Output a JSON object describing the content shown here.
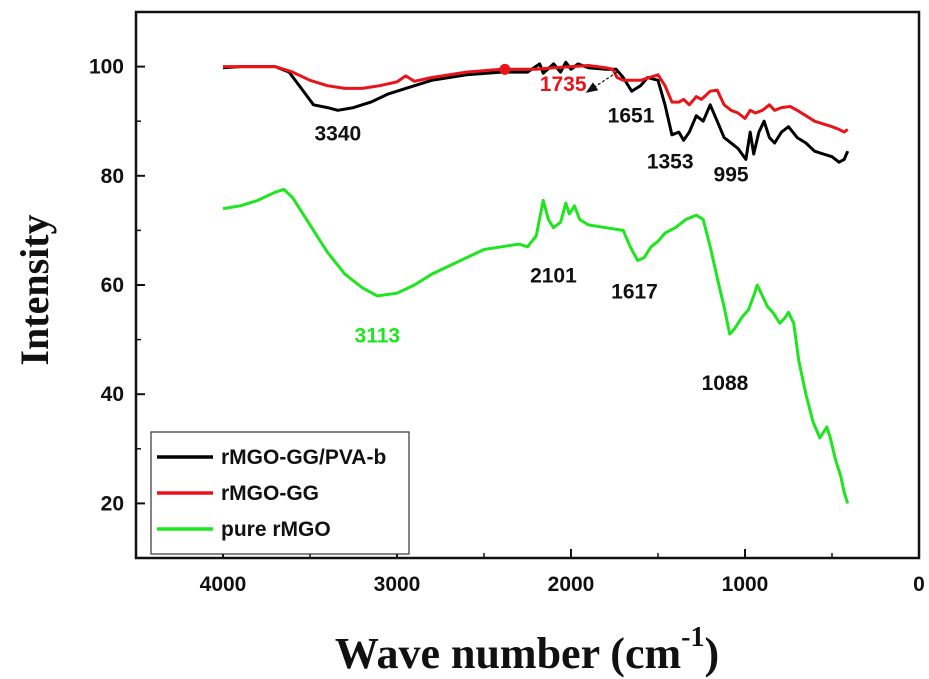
{
  "chart_data": {
    "type": "line",
    "xlabel": "Wave number (cm",
    "xlabel_sup": "-1",
    "xlabel_close": ")",
    "ylabel": "Intensity",
    "xlim": [
      4500,
      0
    ],
    "ylim": [
      10,
      110
    ],
    "x_ticks": [
      4000,
      3000,
      2000,
      1000,
      0
    ],
    "y_ticks": [
      20,
      40,
      60,
      80,
      100
    ],
    "grid": false,
    "legend_position": "bottom-left",
    "series": [
      {
        "name": "rMGO-GG/PVA-b",
        "color": "#000000",
        "points": [
          [
            4000,
            99.8
          ],
          [
            3900,
            100
          ],
          [
            3700,
            100
          ],
          [
            3620,
            99
          ],
          [
            3550,
            96
          ],
          [
            3480,
            93
          ],
          [
            3400,
            92.5
          ],
          [
            3340,
            92
          ],
          [
            3250,
            92.5
          ],
          [
            3150,
            93.5
          ],
          [
            3050,
            95
          ],
          [
            2950,
            96
          ],
          [
            2800,
            97.5
          ],
          [
            2600,
            98.5
          ],
          [
            2400,
            99
          ],
          [
            2250,
            99
          ],
          [
            2180,
            100.5
          ],
          [
            2160,
            98.8
          ],
          [
            2100,
            100.5
          ],
          [
            2060,
            99
          ],
          [
            2030,
            100.8
          ],
          [
            2000,
            99.5
          ],
          [
            1960,
            100.5
          ],
          [
            1900,
            99.8
          ],
          [
            1800,
            99.5
          ],
          [
            1740,
            99.5
          ],
          [
            1700,
            98
          ],
          [
            1651,
            95.5
          ],
          [
            1600,
            96.5
          ],
          [
            1560,
            98
          ],
          [
            1500,
            97.5
          ],
          [
            1460,
            93
          ],
          [
            1420,
            87.5
          ],
          [
            1380,
            88
          ],
          [
            1353,
            86.5
          ],
          [
            1320,
            88
          ],
          [
            1280,
            91
          ],
          [
            1240,
            90
          ],
          [
            1200,
            93
          ],
          [
            1160,
            90
          ],
          [
            1120,
            87
          ],
          [
            1080,
            86
          ],
          [
            1040,
            85
          ],
          [
            995,
            83
          ],
          [
            970,
            88
          ],
          [
            950,
            84
          ],
          [
            920,
            88
          ],
          [
            890,
            90
          ],
          [
            860,
            87
          ],
          [
            830,
            86
          ],
          [
            790,
            88
          ],
          [
            750,
            89
          ],
          [
            700,
            87
          ],
          [
            650,
            86
          ],
          [
            600,
            84.5
          ],
          [
            550,
            84
          ],
          [
            500,
            83.5
          ],
          [
            460,
            82.5
          ],
          [
            430,
            83
          ],
          [
            410,
            84.5
          ]
        ]
      },
      {
        "name": "rMGO-GG",
        "color": "#e8141a",
        "points": [
          [
            4000,
            100
          ],
          [
            3900,
            100
          ],
          [
            3700,
            100
          ],
          [
            3600,
            99
          ],
          [
            3500,
            97.5
          ],
          [
            3400,
            96.5
          ],
          [
            3300,
            96
          ],
          [
            3200,
            96
          ],
          [
            3100,
            96.5
          ],
          [
            3000,
            97.2
          ],
          [
            2950,
            98.3
          ],
          [
            2900,
            97.3
          ],
          [
            2800,
            98
          ],
          [
            2600,
            99
          ],
          [
            2400,
            99.5
          ],
          [
            2200,
            99.5
          ],
          [
            2100,
            99.8
          ],
          [
            2000,
            100
          ],
          [
            1900,
            100.2
          ],
          [
            1800,
            99.8
          ],
          [
            1760,
            99.5
          ],
          [
            1735,
            98
          ],
          [
            1700,
            97.5
          ],
          [
            1651,
            97.5
          ],
          [
            1600,
            97.5
          ],
          [
            1550,
            98
          ],
          [
            1500,
            98.5
          ],
          [
            1460,
            96.5
          ],
          [
            1420,
            93.5
          ],
          [
            1380,
            93.5
          ],
          [
            1353,
            94
          ],
          [
            1320,
            93
          ],
          [
            1280,
            94.5
          ],
          [
            1250,
            94
          ],
          [
            1200,
            95.5
          ],
          [
            1160,
            95.7
          ],
          [
            1120,
            93
          ],
          [
            1080,
            92
          ],
          [
            1040,
            91.5
          ],
          [
            1000,
            90.5
          ],
          [
            970,
            92
          ],
          [
            940,
            91.5
          ],
          [
            900,
            92
          ],
          [
            860,
            93
          ],
          [
            830,
            92
          ],
          [
            790,
            92.5
          ],
          [
            740,
            92.7
          ],
          [
            700,
            92
          ],
          [
            650,
            91
          ],
          [
            600,
            90
          ],
          [
            550,
            89.5
          ],
          [
            500,
            89
          ],
          [
            460,
            88.5
          ],
          [
            430,
            88
          ],
          [
            410,
            88.5
          ]
        ]
      },
      {
        "name": "pure rMGO",
        "color": "#1ee61e",
        "points": [
          [
            4000,
            74
          ],
          [
            3900,
            74.5
          ],
          [
            3800,
            75.5
          ],
          [
            3700,
            77
          ],
          [
            3650,
            77.5
          ],
          [
            3600,
            76
          ],
          [
            3500,
            71
          ],
          [
            3400,
            66
          ],
          [
            3300,
            62
          ],
          [
            3200,
            59.5
          ],
          [
            3113,
            58
          ],
          [
            3000,
            58.5
          ],
          [
            2900,
            60
          ],
          [
            2800,
            62
          ],
          [
            2700,
            63.5
          ],
          [
            2600,
            65
          ],
          [
            2500,
            66.5
          ],
          [
            2400,
            67
          ],
          [
            2300,
            67.5
          ],
          [
            2250,
            67
          ],
          [
            2200,
            69
          ],
          [
            2160,
            75.5
          ],
          [
            2130,
            72
          ],
          [
            2101,
            70.5
          ],
          [
            2060,
            71.5
          ],
          [
            2030,
            75
          ],
          [
            2010,
            73
          ],
          [
            1980,
            74.5
          ],
          [
            1950,
            72
          ],
          [
            1900,
            71
          ],
          [
            1800,
            70.5
          ],
          [
            1700,
            70
          ],
          [
            1660,
            67
          ],
          [
            1617,
            64.5
          ],
          [
            1580,
            65
          ],
          [
            1540,
            67
          ],
          [
            1500,
            68
          ],
          [
            1460,
            69.5
          ],
          [
            1400,
            70.5
          ],
          [
            1340,
            72
          ],
          [
            1280,
            72.8
          ],
          [
            1240,
            72
          ],
          [
            1200,
            67
          ],
          [
            1150,
            60
          ],
          [
            1120,
            56
          ],
          [
            1088,
            51
          ],
          [
            1060,
            52
          ],
          [
            1020,
            54
          ],
          [
            980,
            55.5
          ],
          [
            950,
            58
          ],
          [
            930,
            60
          ],
          [
            900,
            58
          ],
          [
            870,
            56
          ],
          [
            840,
            55
          ],
          [
            800,
            53
          ],
          [
            770,
            54
          ],
          [
            750,
            55
          ],
          [
            720,
            53
          ],
          [
            690,
            46
          ],
          [
            650,
            40
          ],
          [
            610,
            35
          ],
          [
            570,
            32
          ],
          [
            530,
            34
          ],
          [
            510,
            32
          ],
          [
            480,
            28
          ],
          [
            450,
            25
          ],
          [
            430,
            22
          ],
          [
            410,
            20
          ]
        ]
      }
    ],
    "annotations": [
      {
        "text": "3340",
        "x": 3340,
        "y": 86.5,
        "color": "#111111"
      },
      {
        "text": "1735",
        "x": 2045,
        "y": 95.5,
        "color": "#e8141a"
      },
      {
        "text": "1651",
        "x": 1655,
        "y": 89.8,
        "color": "#111111"
      },
      {
        "text": "1353",
        "x": 1430,
        "y": 81.3,
        "color": "#111111"
      },
      {
        "text": "995",
        "x": 1080,
        "y": 79,
        "color": "#111111"
      },
      {
        "text": "2101",
        "x": 2101,
        "y": 60.5,
        "color": "#111111"
      },
      {
        "text": "1617",
        "x": 1635,
        "y": 57.5,
        "color": "#111111"
      },
      {
        "text": "3113",
        "x": 3113,
        "y": 49.5,
        "color": "#1ee61e"
      },
      {
        "text": "1088",
        "x": 1115,
        "y": 40.8,
        "color": "#111111"
      }
    ],
    "arrow": {
      "from": [
        1735,
        99
      ],
      "to": [
        1910,
        95.3
      ],
      "color": "#111111"
    },
    "marker": {
      "x": 2380,
      "y": 99.5,
      "color": "#e8141a"
    }
  }
}
